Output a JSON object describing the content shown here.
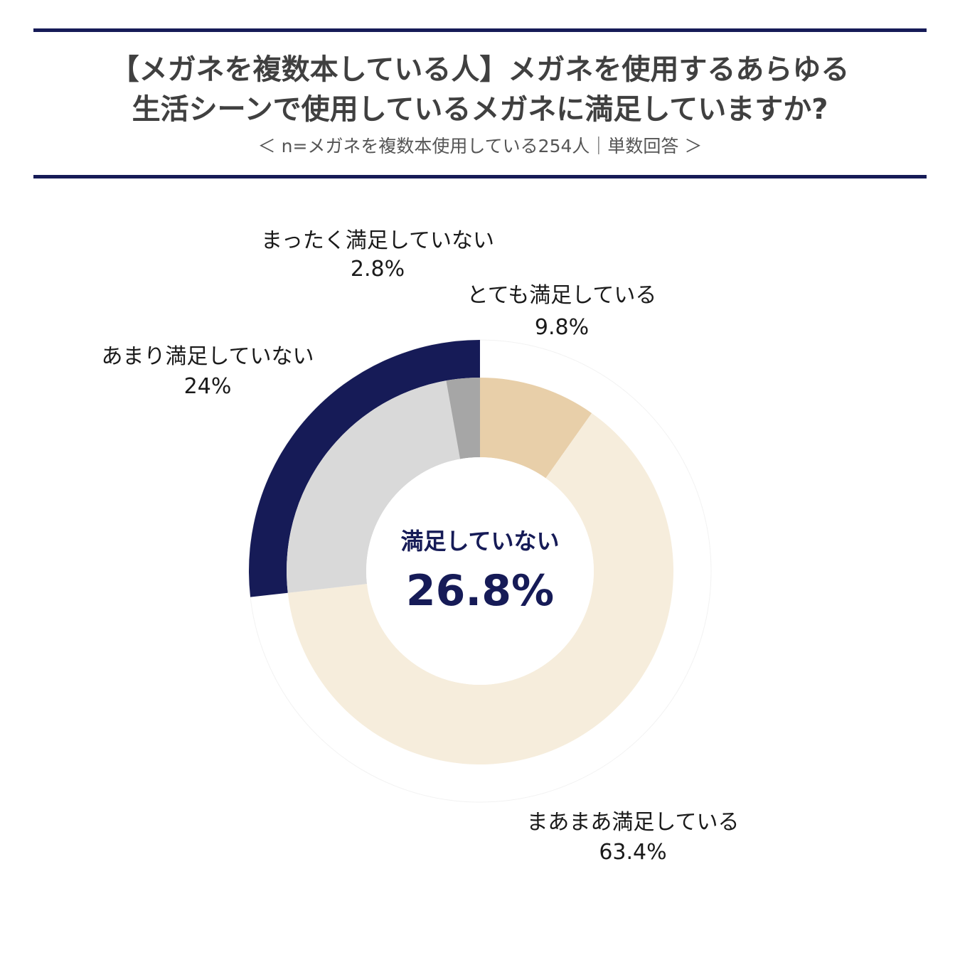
{
  "header": {
    "title_line1": "【メガネを複数本している人】メガネを使用するあらゆる",
    "title_line2": "生活シーンで使用しているメガネに満足していますか?",
    "subtitle": "＜ n=メガネを複数本使用している254人｜単数回答 ＞"
  },
  "chart_data": {
    "type": "pie",
    "slices": [
      {
        "label": "とても満足している",
        "value": 9.8,
        "display": "9.8%",
        "color": "#e8cfa9"
      },
      {
        "label": "まあまあ満足している",
        "value": 63.4,
        "display": "63.4%",
        "color": "#f6eddc"
      },
      {
        "label": "あまり満足していない",
        "value": 24,
        "display": "24%",
        "color": "#d9d9d9"
      },
      {
        "label": "まったく満足していない",
        "value": 2.8,
        "display": "2.8%",
        "color": "#a6a6a6"
      }
    ],
    "outer_ring": {
      "label": "満足していない",
      "value": 26.8,
      "display": "26.8%",
      "color": "#161b57"
    },
    "center": {
      "label": "満足していない",
      "value": "26.8%"
    }
  }
}
